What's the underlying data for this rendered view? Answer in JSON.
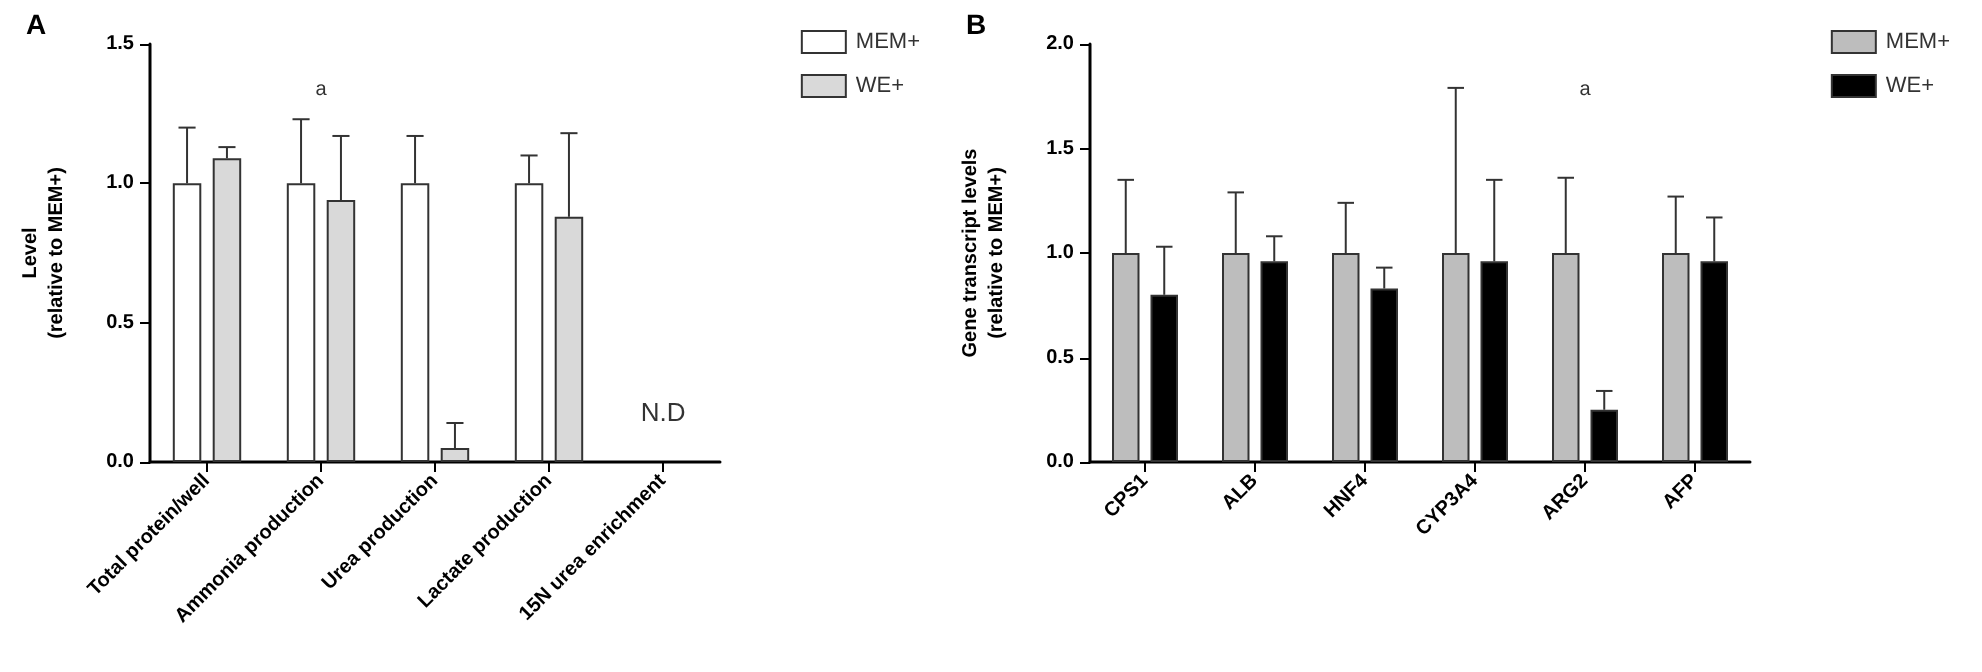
{
  "chart_data": [
    {
      "type": "bar",
      "title": "A",
      "ylabel": "Level\n(relative to MEM+)",
      "categories": [
        "Total protein/well",
        "Ammonia production",
        "Urea production",
        "Lactate production",
        "15N urea enrichment"
      ],
      "series": [
        {
          "name": "MEM+",
          "color": "#ffffff",
          "values": [
            1.0,
            1.0,
            1.0,
            1.0,
            null
          ],
          "errors": [
            [
              1.0,
              1.2
            ],
            [
              1.0,
              1.23
            ],
            [
              1.0,
              1.17
            ],
            [
              1.0,
              1.1
            ],
            null
          ]
        },
        {
          "name": "WE+",
          "color": "#d9d9d9",
          "values": [
            1.09,
            0.94,
            0.05,
            0.88,
            null
          ],
          "errors": [
            [
              1.09,
              1.13
            ],
            [
              0.94,
              1.17
            ],
            [
              0.05,
              0.14
            ],
            [
              0.88,
              1.18
            ],
            null
          ]
        }
      ],
      "ylim": [
        0,
        1.5
      ],
      "yticks": [
        {
          "value": 0,
          "label": "0.0"
        },
        {
          "value": 0.5,
          "label": "0.5"
        },
        {
          "value": 1,
          "label": "1.0"
        },
        {
          "value": 1.5,
          "label": "1.5"
        }
      ],
      "annotations": [
        "a",
        "N.D"
      ],
      "legend": "top right",
      "grid": false
    },
    {
      "type": "bar",
      "title": "B",
      "ylabel": "Gene transcript levels\n(relative to MEM+)",
      "categories": [
        "CPS1",
        "ALB",
        "HNF4",
        "CYP3A4",
        "ARG2",
        "AFP"
      ],
      "series": [
        {
          "name": "MEM+",
          "color": "#bdbdbd",
          "values": [
            1.0,
            1.0,
            1.0,
            1.0,
            1.0,
            1.0
          ],
          "errors": [
            [
              1.0,
              1.35
            ],
            [
              1.0,
              1.29
            ],
            [
              1.0,
              1.24
            ],
            [
              1.0,
              1.79
            ],
            [
              1.0,
              1.36
            ],
            [
              1.0,
              1.27
            ]
          ]
        },
        {
          "name": "WE+",
          "color": "#000000",
          "values": [
            0.8,
            0.96,
            0.83,
            0.96,
            0.25,
            0.96
          ],
          "errors": [
            [
              0.8,
              1.03
            ],
            [
              0.96,
              1.08
            ],
            [
              0.83,
              0.93
            ],
            [
              0.96,
              1.35
            ],
            [
              0.25,
              0.34
            ],
            [
              0.96,
              1.17
            ]
          ]
        }
      ],
      "ylim": [
        0,
        2
      ],
      "yticks": [
        {
          "value": 0,
          "label": "0.0"
        },
        {
          "value": 0.5,
          "label": "0.5"
        },
        {
          "value": 1,
          "label": "1.0"
        },
        {
          "value": 1.5,
          "label": "1.5"
        },
        {
          "value": 2,
          "label": "2.0"
        }
      ],
      "annotations": [
        "a"
      ],
      "legend": "top right",
      "grid": false
    }
  ]
}
